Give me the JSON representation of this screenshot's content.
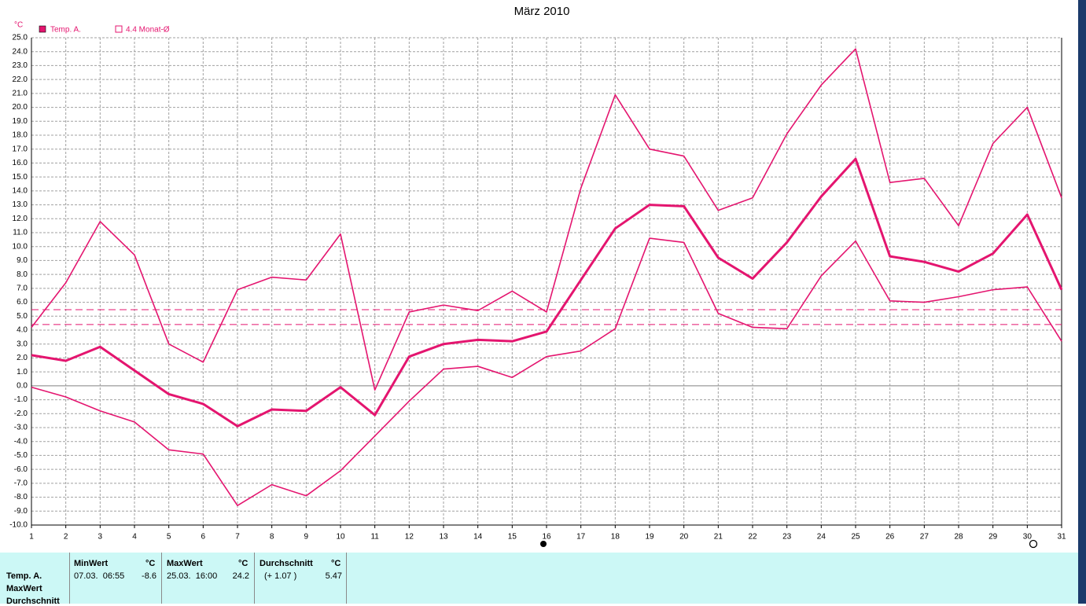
{
  "chart_data": {
    "type": "line",
    "title": "März 2010",
    "y_unit": "°C",
    "x": [
      1,
      2,
      3,
      4,
      5,
      6,
      7,
      8,
      9,
      10,
      11,
      12,
      13,
      14,
      15,
      16,
      17,
      18,
      19,
      20,
      21,
      22,
      23,
      24,
      25,
      26,
      27,
      28,
      29,
      30,
      31
    ],
    "xlim": [
      1,
      31
    ],
    "xticks": [
      1,
      2,
      3,
      4,
      5,
      6,
      7,
      8,
      9,
      10,
      11,
      12,
      13,
      14,
      15,
      16,
      17,
      18,
      19,
      20,
      21,
      22,
      23,
      24,
      25,
      26,
      27,
      28,
      29,
      30,
      31
    ],
    "ylim": [
      -10,
      25
    ],
    "yticks": [
      {
        "value": -10,
        "label": "-10.0"
      },
      {
        "value": -9,
        "label": "-9.0"
      },
      {
        "value": -8,
        "label": "-8.0"
      },
      {
        "value": -7,
        "label": "-7.0"
      },
      {
        "value": -6,
        "label": "-6.0"
      },
      {
        "value": -5,
        "label": "-5.0"
      },
      {
        "value": -4,
        "label": "-4.0"
      },
      {
        "value": -3,
        "label": "-3.0"
      },
      {
        "value": -2,
        "label": "-2.0"
      },
      {
        "value": -1,
        "label": "-1.0"
      },
      {
        "value": 0,
        "label": "0.0"
      },
      {
        "value": 1,
        "label": "1.0"
      },
      {
        "value": 2,
        "label": "2.0"
      },
      {
        "value": 3,
        "label": "3.0"
      },
      {
        "value": 4,
        "label": "4.0"
      },
      {
        "value": 5,
        "label": "5.0"
      },
      {
        "value": 6,
        "label": "6.0"
      },
      {
        "value": 7,
        "label": "7.0"
      },
      {
        "value": 8,
        "label": "8.0"
      },
      {
        "value": 9,
        "label": "9.0"
      },
      {
        "value": 10,
        "label": "10.0"
      },
      {
        "value": 11,
        "label": "11.0"
      },
      {
        "value": 12,
        "label": "12.0"
      },
      {
        "value": 13,
        "label": "13.0"
      },
      {
        "value": 14,
        "label": "14.0"
      },
      {
        "value": 15,
        "label": "15.0"
      },
      {
        "value": 16,
        "label": "16.0"
      },
      {
        "value": 17,
        "label": "17.0"
      },
      {
        "value": 18,
        "label": "18.0"
      },
      {
        "value": 19,
        "label": "19.0"
      },
      {
        "value": 20,
        "label": "20.0"
      },
      {
        "value": 21,
        "label": "21.0"
      },
      {
        "value": 22,
        "label": "22.0"
      },
      {
        "value": 23,
        "label": "23.0"
      },
      {
        "value": 24,
        "label": "24.0"
      },
      {
        "value": 25,
        "label": "25.0"
      }
    ],
    "grid": true,
    "series": [
      {
        "color": "#e4156f",
        "values": [
          4.2,
          7.4,
          11.8,
          9.4,
          3.0,
          1.7,
          6.9,
          7.8,
          7.6,
          10.9,
          -0.3,
          5.3,
          5.8,
          5.4,
          6.8,
          5.3,
          14.2,
          20.9,
          17.0,
          16.5,
          12.6,
          13.5,
          18.1,
          21.6,
          24.2,
          14.6,
          14.9,
          11.5,
          17.4,
          20.0,
          13.5
        ]
      },
      {
        "name": "Temp. A.",
        "color": "#e4156f",
        "values": [
          2.2,
          1.8,
          2.8,
          1.1,
          -0.6,
          -1.3,
          -2.9,
          -1.7,
          -1.8,
          -0.1,
          -2.1,
          2.1,
          3.0,
          3.3,
          3.2,
          3.9,
          7.6,
          11.3,
          13.0,
          12.9,
          9.2,
          7.7,
          10.3,
          13.6,
          16.3,
          9.3,
          8.9,
          8.2,
          9.5,
          12.3,
          6.9
        ]
      },
      {
        "color": "#e4156f",
        "values": [
          -0.1,
          -0.8,
          -1.8,
          -2.6,
          -4.6,
          -4.9,
          -8.6,
          -7.1,
          -7.9,
          -6.1,
          -3.6,
          -1.1,
          1.2,
          1.4,
          0.6,
          2.1,
          2.5,
          4.1,
          10.6,
          10.3,
          5.2,
          4.2,
          4.1,
          7.9,
          10.4,
          6.1,
          6.0,
          6.4,
          6.9,
          7.1,
          3.2
        ]
      }
    ],
    "reference_lines": [
      {
        "value": 4.4,
        "label": "4.4 Monat-Ø",
        "color": "#e4156f"
      },
      {
        "value": 5.47,
        "color": "#e4156f"
      }
    ]
  },
  "summary_table": {
    "row_labels": [
      "Temp. A.",
      "MaxWert",
      "Durchschnitt"
    ],
    "columns": [
      {
        "header": "MinWert",
        "unit": "°C",
        "detail": "07.03.  06:55",
        "value": "-8.6"
      },
      {
        "header": "MaxWert",
        "unit": "°C",
        "detail": "25.03.  16:00",
        "value": "24.2"
      },
      {
        "header": "Durchschnitt",
        "unit": "°C",
        "detail": "(+ 1.07 )",
        "value": "5.47"
      }
    ]
  }
}
